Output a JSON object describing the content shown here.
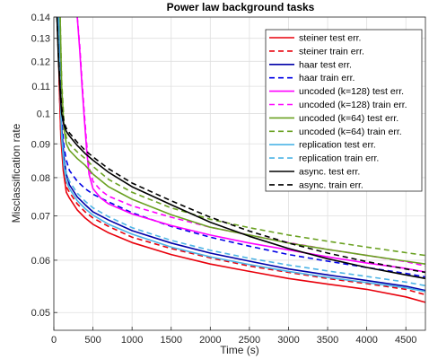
{
  "chart_data": {
    "type": "line",
    "title": "Power law background tasks",
    "xlabel": "Time (s)",
    "ylabel": "Misclassification rate",
    "xlim": [
      0,
      4750
    ],
    "ylim": [
      0.047,
      0.14
    ],
    "yscale": "log",
    "grid": true,
    "legend_position": "top-right",
    "x_ticks": [
      0,
      500,
      1000,
      1500,
      2000,
      2500,
      3000,
      3500,
      4000,
      4500
    ],
    "x_tick_labels": [
      "0",
      "500",
      "1000",
      "1500",
      "2000",
      "2500",
      "3000",
      "3500",
      "4000",
      "4500"
    ],
    "y_ticks": [
      0.05,
      0.06,
      0.07,
      0.08,
      0.09,
      0.1,
      0.11,
      0.12,
      0.13,
      0.14
    ],
    "y_tick_labels": [
      "0.05",
      "0.06",
      "0.07",
      "0.08",
      "0.09",
      "0.1",
      "0.11",
      "0.12",
      "0.13",
      "0.14"
    ],
    "series": [
      {
        "name": "steiner test err.",
        "color": "#e8000b",
        "dash": "solid",
        "x": [
          50,
          70,
          90,
          120,
          160,
          200,
          300,
          400,
          500,
          700,
          1000,
          1500,
          2000,
          2500,
          3000,
          3500,
          4000,
          4500,
          4750
        ],
        "y": [
          0.14,
          0.11,
          0.092,
          0.082,
          0.076,
          0.0745,
          0.0715,
          0.0695,
          0.068,
          0.066,
          0.0638,
          0.0612,
          0.0592,
          0.0577,
          0.0563,
          0.0552,
          0.0542,
          0.0528,
          0.0518
        ]
      },
      {
        "name": "steiner train err.",
        "color": "#e8000b",
        "dash": "dashed",
        "x": [
          50,
          70,
          90,
          120,
          160,
          200,
          300,
          400,
          500,
          700,
          1000,
          1500,
          2000,
          2500,
          3000,
          3500,
          4000,
          4500,
          4750
        ],
        "y": [
          0.14,
          0.11,
          0.093,
          0.083,
          0.0775,
          0.076,
          0.073,
          0.071,
          0.0695,
          0.0675,
          0.065,
          0.0625,
          0.0605,
          0.0588,
          0.0575,
          0.0563,
          0.0553,
          0.0542,
          0.0532
        ]
      },
      {
        "name": "haar test err.",
        "color": "#0000a8",
        "dash": "solid",
        "x": [
          60,
          80,
          100,
          130,
          160,
          200,
          300,
          400,
          500,
          700,
          1000,
          1500,
          2000,
          2500,
          3000,
          3500,
          4000,
          4500,
          4750
        ],
        "y": [
          0.14,
          0.112,
          0.095,
          0.086,
          0.081,
          0.078,
          0.0748,
          0.0728,
          0.071,
          0.069,
          0.0665,
          0.0637,
          0.0615,
          0.0598,
          0.0582,
          0.057,
          0.0559,
          0.0548,
          0.054
        ]
      },
      {
        "name": "haar train err.",
        "color": "#0000e6",
        "dash": "dashed",
        "x": [
          60,
          80,
          100,
          130,
          160,
          200,
          300,
          400,
          500,
          700,
          1000,
          1500,
          2000,
          2500,
          3000,
          3500,
          4000,
          4500,
          4750
        ],
        "y": [
          0.14,
          0.115,
          0.098,
          0.089,
          0.085,
          0.082,
          0.079,
          0.077,
          0.0755,
          0.0735,
          0.0708,
          0.0675,
          0.065,
          0.063,
          0.0612,
          0.0598,
          0.0585,
          0.0573,
          0.0566
        ]
      },
      {
        "name": "uncoded (k=128) test err.",
        "color": "#ff00ff",
        "dash": "solid",
        "x": [
          300,
          330,
          360,
          390,
          420,
          450,
          500,
          600,
          700,
          1000,
          1500,
          2000,
          2500,
          3000,
          3500,
          4000,
          4500,
          4750
        ],
        "y": [
          0.14,
          0.125,
          0.11,
          0.098,
          0.088,
          0.081,
          0.077,
          0.0745,
          0.073,
          0.0705,
          0.0677,
          0.0655,
          0.0637,
          0.0622,
          0.0607,
          0.0594,
          0.0583,
          0.0576
        ]
      },
      {
        "name": "uncoded (k=128) train err.",
        "color": "#ff00ff",
        "dash": "dashed",
        "x": [
          300,
          330,
          360,
          390,
          420,
          450,
          500,
          600,
          700,
          1000,
          1500,
          2000,
          2500,
          3000,
          3500,
          4000,
          4500,
          4750
        ],
        "y": [
          0.14,
          0.127,
          0.112,
          0.1,
          0.09,
          0.083,
          0.079,
          0.0765,
          0.075,
          0.0725,
          0.0697,
          0.0673,
          0.0655,
          0.0638,
          0.0623,
          0.061,
          0.0597,
          0.0588
        ]
      },
      {
        "name": "uncoded (k=64) test err.",
        "color": "#6aa121",
        "dash": "solid",
        "x": [
          80,
          100,
          130,
          160,
          200,
          300,
          400,
          500,
          700,
          1000,
          1500,
          2000,
          2500,
          3000,
          3500,
          4000,
          4500,
          4750
        ],
        "y": [
          0.14,
          0.11,
          0.095,
          0.09,
          0.088,
          0.0855,
          0.0835,
          0.081,
          0.0775,
          0.0742,
          0.0703,
          0.0673,
          0.0655,
          0.0637,
          0.0623,
          0.061,
          0.0598,
          0.0592
        ]
      },
      {
        "name": "uncoded (k=64) train err.",
        "color": "#6aa121",
        "dash": "dashed",
        "x": [
          80,
          100,
          130,
          160,
          200,
          300,
          400,
          500,
          700,
          1000,
          1500,
          2000,
          2500,
          3000,
          3500,
          4000,
          4500,
          4750
        ],
        "y": [
          0.14,
          0.112,
          0.097,
          0.092,
          0.09,
          0.0875,
          0.0855,
          0.0832,
          0.0795,
          0.076,
          0.072,
          0.0692,
          0.0672,
          0.0655,
          0.0641,
          0.0628,
          0.0616,
          0.061
        ]
      },
      {
        "name": "replication test err.",
        "color": "#4cb4e6",
        "dash": "solid",
        "x": [
          60,
          80,
          100,
          130,
          160,
          200,
          300,
          400,
          500,
          700,
          1000,
          1500,
          2000,
          2500,
          3000,
          3500,
          4000,
          4500,
          4750
        ],
        "y": [
          0.14,
          0.108,
          0.092,
          0.083,
          0.079,
          0.077,
          0.0738,
          0.0718,
          0.0702,
          0.068,
          0.0657,
          0.0628,
          0.0607,
          0.0591,
          0.0577,
          0.0565,
          0.0555,
          0.0545,
          0.0538
        ]
      },
      {
        "name": "replication train err.",
        "color": "#4cb4e6",
        "dash": "dashed",
        "x": [
          60,
          80,
          100,
          130,
          160,
          200,
          300,
          400,
          500,
          700,
          1000,
          1500,
          2000,
          2500,
          3000,
          3500,
          4000,
          4500,
          4750
        ],
        "y": [
          0.14,
          0.11,
          0.094,
          0.085,
          0.081,
          0.079,
          0.0758,
          0.0737,
          0.072,
          0.0698,
          0.0672,
          0.0643,
          0.0621,
          0.0604,
          0.059,
          0.0578,
          0.0567,
          0.0556,
          0.0549
        ]
      },
      {
        "name": "async. test err.",
        "color": "#000000",
        "dash": "solid",
        "x": [
          40,
          60,
          80,
          100,
          130,
          160,
          200,
          300,
          400,
          500,
          700,
          1000,
          1500,
          2000,
          2500,
          3000,
          3500,
          4000,
          4500,
          4750
        ],
        "y": [
          0.14,
          0.12,
          0.108,
          0.1,
          0.096,
          0.094,
          0.0925,
          0.0895,
          0.087,
          0.085,
          0.0815,
          0.0775,
          0.0728,
          0.0685,
          0.0652,
          0.0625,
          0.0603,
          0.0585,
          0.057,
          0.0563
        ]
      },
      {
        "name": "async. train err.",
        "color": "#000000",
        "dash": "dashed",
        "x": [
          40,
          60,
          80,
          100,
          130,
          160,
          200,
          300,
          400,
          500,
          700,
          1000,
          1500,
          2000,
          2500,
          3000,
          3500,
          4000,
          4500,
          4750
        ],
        "y": [
          0.14,
          0.122,
          0.11,
          0.102,
          0.097,
          0.095,
          0.0935,
          0.0905,
          0.088,
          0.086,
          0.0825,
          0.0785,
          0.0738,
          0.0697,
          0.0664,
          0.0637,
          0.0615,
          0.0597,
          0.0582,
          0.0575
        ]
      }
    ]
  }
}
